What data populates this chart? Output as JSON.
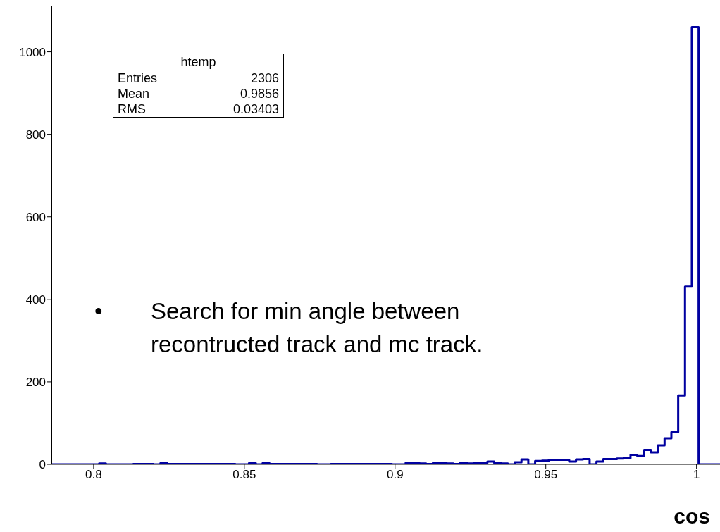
{
  "chart_data": {
    "type": "histogram",
    "xlabel": "cos",
    "annotations": [
      "htemp",
      "Entries 2306",
      "Mean 0.9856",
      "RMS 0.03403",
      "• Search for min angle between recontructed track and mc track."
    ],
    "bins": [
      0.786,
      0.78826,
      0.79052,
      0.79278,
      0.79504,
      0.7973,
      0.79956,
      0.80182,
      0.80408,
      0.80634,
      0.8086,
      0.81086,
      0.81312,
      0.81538,
      0.81764,
      0.8199,
      0.82216,
      0.82442,
      0.82668,
      0.82894,
      0.8312,
      0.83346,
      0.83572,
      0.83798,
      0.84024,
      0.8425,
      0.84476,
      0.84702,
      0.84928,
      0.85154,
      0.8538,
      0.85606,
      0.85832,
      0.86058,
      0.86284,
      0.8651,
      0.86736,
      0.86962,
      0.87188,
      0.87414,
      0.8764,
      0.87866,
      0.88092,
      0.88318,
      0.88544,
      0.8877,
      0.88996,
      0.89222,
      0.89448,
      0.89674,
      0.899,
      0.90126,
      0.90352,
      0.90578,
      0.90804,
      0.9103,
      0.91256,
      0.91482,
      0.91708,
      0.91934,
      0.9216,
      0.92386,
      0.92612,
      0.92838,
      0.93064,
      0.9329,
      0.93516,
      0.93742,
      0.93968,
      0.94194,
      0.9442,
      0.94646,
      0.94872,
      0.95098,
      0.95324,
      0.9555,
      0.95776,
      0.96002,
      0.96228,
      0.96454,
      0.9668,
      0.96906,
      0.97132,
      0.97358,
      0.97584,
      0.9781,
      0.98036,
      0.98262,
      0.98488,
      0.98714,
      0.9894,
      0.99166,
      0.99392,
      0.99618,
      0.99844,
      1.0007,
      1.00296,
      1.00522,
      1.00748,
      1.00974,
      1.012
    ],
    "values": [
      0,
      0,
      0,
      0,
      0,
      0,
      0,
      2,
      0,
      0,
      0,
      0,
      1,
      1,
      1,
      0,
      3,
      1,
      1,
      1,
      1,
      1,
      1,
      1,
      1,
      1,
      1,
      0,
      0,
      3,
      0,
      3,
      1,
      1,
      1,
      1,
      1,
      1,
      1,
      0,
      0,
      1,
      1,
      1,
      1,
      1,
      1,
      1,
      1,
      1,
      0,
      0,
      4,
      4,
      2,
      1,
      4,
      4,
      2,
      1,
      4,
      2,
      3,
      4,
      7,
      3,
      2,
      0,
      5,
      12,
      0,
      8,
      9,
      11,
      11,
      11,
      7,
      12,
      13,
      0,
      7,
      13,
      13,
      14,
      15,
      23,
      20,
      35,
      29,
      46,
      63,
      78,
      167,
      431,
      1060,
      0,
      0,
      0,
      0,
      0
    ],
    "color": "#0000a0",
    "xlim": [
      0.786,
      1.012
    ],
    "xticks": [
      0.8,
      0.85,
      0.9,
      0.95,
      1
    ],
    "ylim": [
      0,
      1112
    ],
    "yticks": [
      0,
      200,
      400,
      600,
      800,
      1000
    ],
    "grid": false
  }
}
